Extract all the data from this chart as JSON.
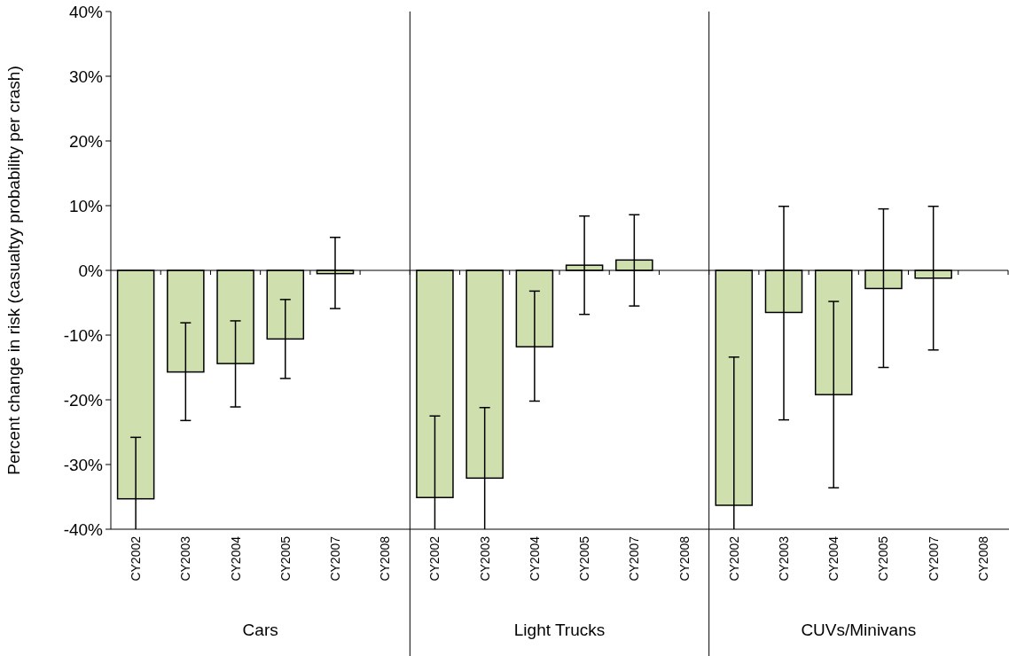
{
  "chart_data": {
    "type": "bar",
    "ylabel": "Percent change in risk (casualtyy probability per crash)",
    "categories": [
      "CY2002",
      "CY2003",
      "CY2004",
      "CY2005",
      "CY2007",
      "CY2008",
      "CY2002",
      "CY2003",
      "CY2004",
      "CY2005",
      "CY2007",
      "CY2008",
      "CY2002",
      "CY2003",
      "CY2004",
      "CY2005",
      "CY2007",
      "CY2008"
    ],
    "values": [
      -35.3,
      -15.7,
      -14.4,
      -10.6,
      -0.5,
      null,
      -35.1,
      -32.1,
      -11.8,
      0.8,
      1.6,
      null,
      -36.3,
      -6.5,
      -19.2,
      -2.8,
      -1.2,
      null
    ],
    "errors": [
      [
        -40,
        -25.8
      ],
      [
        -23.2,
        -8.1
      ],
      [
        -21.1,
        -7.8
      ],
      [
        -16.7,
        -4.5
      ],
      [
        -5.9,
        5.1
      ],
      null,
      [
        -40,
        -22.5
      ],
      [
        -40,
        -21.2
      ],
      [
        -20.2,
        -3.2
      ],
      [
        -6.8,
        8.4
      ],
      [
        -5.5,
        8.6
      ],
      null,
      [
        -40,
        -13.4
      ],
      [
        -23.1,
        9.9
      ],
      [
        -33.6,
        -4.8
      ],
      [
        -15.0,
        9.5
      ],
      [
        -12.3,
        9.9
      ],
      null
    ],
    "color": "#cfdfad",
    "annotations": [
      "Cars",
      "Light Trucks",
      "CUVs/Minivans"
    ],
    "ylim": [
      -40,
      40
    ],
    "yticks": [
      {
        "value": -40,
        "label": "-40%"
      },
      {
        "value": -30,
        "label": "-30%"
      },
      {
        "value": -20,
        "label": "-20%"
      },
      {
        "value": -10,
        "label": "-10%"
      },
      {
        "value": 0,
        "label": "0%"
      },
      {
        "value": 10,
        "label": "10%"
      },
      {
        "value": 20,
        "label": "20%"
      },
      {
        "value": 30,
        "label": "30%"
      },
      {
        "value": 40,
        "label": "40%"
      }
    ],
    "line_style": "solid"
  }
}
